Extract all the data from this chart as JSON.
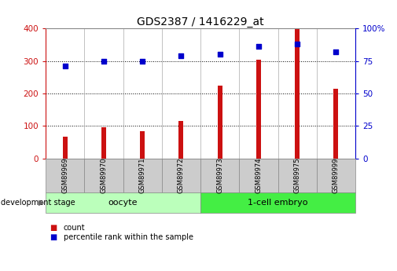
{
  "title": "GDS2387 / 1416229_at",
  "samples": [
    "GSM89969",
    "GSM89970",
    "GSM89971",
    "GSM89972",
    "GSM89973",
    "GSM89974",
    "GSM89975",
    "GSM89999"
  ],
  "counts": [
    68,
    95,
    85,
    115,
    225,
    305,
    398,
    215
  ],
  "percentiles": [
    71,
    75,
    75,
    79,
    80,
    86,
    88,
    82
  ],
  "left_ylim": [
    0,
    400
  ],
  "right_ylim": [
    0,
    100
  ],
  "left_yticks": [
    0,
    100,
    200,
    300,
    400
  ],
  "right_yticks": [
    0,
    25,
    50,
    75,
    100
  ],
  "right_yticklabels": [
    "0",
    "25",
    "50",
    "75",
    "100%"
  ],
  "bar_color": "#cc1111",
  "dot_color": "#0000cc",
  "oocyte_label": "oocyte",
  "cell_embryo_label": "1-cell embryo",
  "stage_label": "development stage",
  "legend_count_label": "count",
  "legend_pct_label": "percentile rank within the sample",
  "oocyte_color": "#bbffbb",
  "cell_embryo_color": "#44ee44",
  "tick_bg_color": "#cccccc",
  "title_fontsize": 10,
  "tick_fontsize": 7.5
}
